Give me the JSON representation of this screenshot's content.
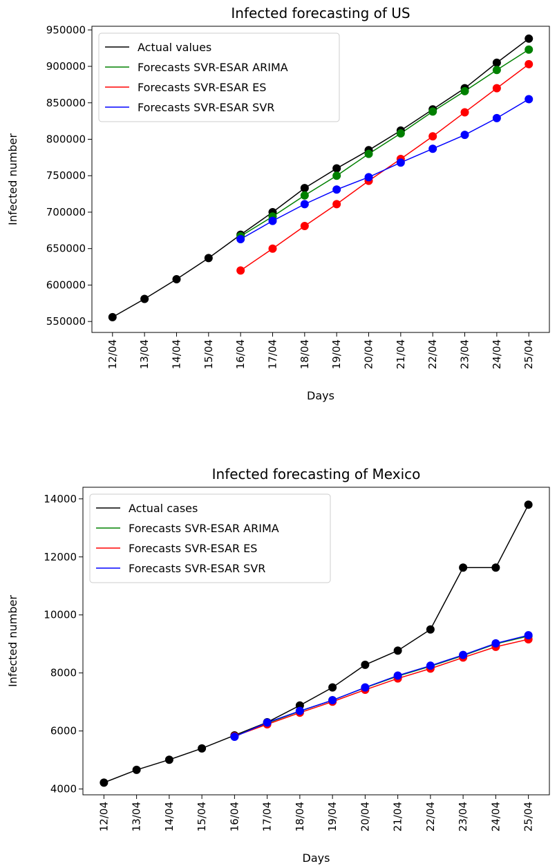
{
  "charts": [
    {
      "type": "line",
      "title": "Infected forecasting of US",
      "xlabel": "Days",
      "ylabel": "Infected number",
      "categories": [
        "12/04",
        "13/04",
        "14/04",
        "15/04",
        "16/04",
        "17/04",
        "18/04",
        "19/04",
        "20/04",
        "21/04",
        "22/04",
        "23/04",
        "24/04",
        "25/04"
      ],
      "ylim": [
        535000,
        955000
      ],
      "yticks": [
        550000,
        600000,
        650000,
        700000,
        750000,
        800000,
        850000,
        900000,
        950000
      ],
      "legend_position": "upper-left",
      "series": [
        {
          "name": "Actual values",
          "color": "#000000",
          "start_index": 0,
          "values": [
            556000,
            581000,
            608000,
            637000,
            669000,
            700000,
            733000,
            760000,
            785000,
            812000,
            841000,
            870000,
            905000,
            938000
          ]
        },
        {
          "name": "Forecasts SVR-ESAR ARIMA",
          "color": "#008000",
          "start_index": 4,
          "values": [
            667000,
            694000,
            723000,
            750000,
            780000,
            808000,
            838000,
            866000,
            895000,
            923000
          ]
        },
        {
          "name": "Forecasts SVR-ESAR ES",
          "color": "#ff0000",
          "start_index": 4,
          "values": [
            620000,
            650000,
            681000,
            711000,
            743000,
            773000,
            804000,
            837000,
            870000,
            903000
          ]
        },
        {
          "name": "Forecasts SVR-ESAR SVR",
          "color": "#0000ff",
          "start_index": 4,
          "values": [
            663000,
            688000,
            711000,
            731000,
            748000,
            768000,
            787000,
            806000,
            829000,
            855000
          ]
        }
      ]
    },
    {
      "type": "line",
      "title": "Infected forecasting of Mexico",
      "xlabel": "Days",
      "ylabel": "Infected number",
      "categories": [
        "12/04",
        "13/04",
        "14/04",
        "15/04",
        "16/04",
        "17/04",
        "18/04",
        "19/04",
        "20/04",
        "21/04",
        "22/04",
        "23/04",
        "24/04",
        "25/04"
      ],
      "ylim": [
        3800,
        14400
      ],
      "yticks": [
        4000,
        6000,
        8000,
        10000,
        12000,
        14000
      ],
      "legend_position": "upper-left",
      "series": [
        {
          "name": "Actual cases",
          "color": "#000000",
          "start_index": 0,
          "values": [
            4220,
            4660,
            5010,
            5400,
            5850,
            6300,
            6880,
            7500,
            8280,
            8770,
            9500,
            11630,
            11630,
            13800
          ]
        },
        {
          "name": "Forecasts SVR-ESAR ARIMA",
          "color": "#008000",
          "start_index": 4,
          "values": [
            5820,
            6270,
            6680,
            7060,
            7490,
            7890,
            8230,
            8600,
            9000,
            9270
          ]
        },
        {
          "name": "Forecasts SVR-ESAR ES",
          "color": "#ff0000",
          "start_index": 4,
          "values": [
            5820,
            6230,
            6630,
            7010,
            7420,
            7810,
            8150,
            8530,
            8900,
            9160
          ]
        },
        {
          "name": "Forecasts SVR-ESAR SVR",
          "color": "#0000ff",
          "start_index": 4,
          "values": [
            5800,
            6290,
            6690,
            7060,
            7500,
            7910,
            8250,
            8620,
            9020,
            9300
          ]
        }
      ]
    }
  ]
}
